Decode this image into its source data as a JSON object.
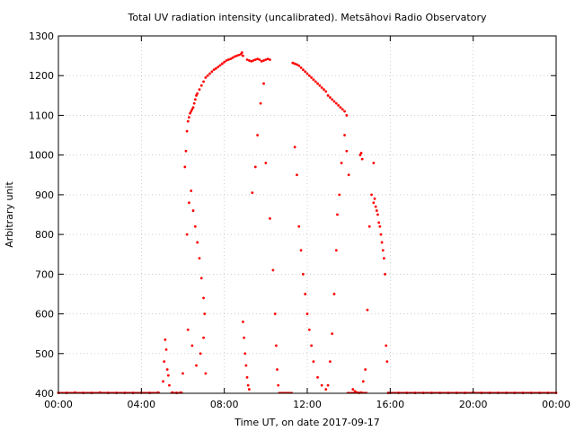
{
  "chart_data": {
    "type": "scatter",
    "title": "Total UV radiation intensity (uncalibrated). Metsähovi Radio Observatory",
    "xlabel": "Time UT, on date 2017-09-17",
    "ylabel": "Arbitrary unit",
    "xlim": [
      0,
      24
    ],
    "ylim": [
      400,
      1300
    ],
    "xticks": [
      {
        "value": 0,
        "label": "00:00"
      },
      {
        "value": 4,
        "label": "04:00"
      },
      {
        "value": 8,
        "label": "08:00"
      },
      {
        "value": 12,
        "label": "12:00"
      },
      {
        "value": 16,
        "label": "16:00"
      },
      {
        "value": 20,
        "label": "20:00"
      },
      {
        "value": 24,
        "label": "00:00"
      }
    ],
    "yticks": [
      {
        "value": 400,
        "label": "400"
      },
      {
        "value": 500,
        "label": "500"
      },
      {
        "value": 600,
        "label": "600"
      },
      {
        "value": 700,
        "label": "700"
      },
      {
        "value": 800,
        "label": "800"
      },
      {
        "value": 900,
        "label": "900"
      },
      {
        "value": 1000,
        "label": "1000"
      },
      {
        "value": 1100,
        "label": "1100"
      },
      {
        "value": 1200,
        "label": "1200"
      },
      {
        "value": 1300,
        "label": "1300"
      }
    ],
    "grid": true,
    "legend": "none",
    "point_color": "#ff0000",
    "series": [
      {
        "x": [
          0.0,
          0.4,
          0.8,
          1.2,
          1.6,
          2.0,
          2.4,
          2.8,
          3.2,
          3.6,
          4.0,
          4.4,
          4.8,
          5.05,
          5.1,
          5.15,
          5.2,
          5.25,
          5.3,
          5.35,
          5.5,
          5.7,
          5.9,
          6.0,
          6.1,
          6.15,
          6.2,
          6.25,
          6.3,
          6.35,
          6.4,
          6.45,
          6.5,
          6.55,
          6.6,
          6.65,
          6.7,
          6.8,
          6.9,
          7.0,
          7.1,
          7.2,
          7.3,
          7.4,
          7.5,
          7.6,
          7.7,
          7.8,
          7.9,
          8.0,
          8.1,
          8.2,
          8.3,
          8.4,
          8.5,
          8.6,
          8.7,
          8.8,
          8.85,
          8.9,
          9.1,
          9.2,
          9.3,
          9.4,
          9.5,
          9.6,
          9.7,
          9.8,
          9.9,
          10.0,
          10.1,
          10.2,
          11.3,
          11.4,
          11.5,
          11.6,
          11.7,
          11.8,
          11.9,
          12.0,
          12.1,
          12.2,
          12.3,
          12.4,
          12.5,
          12.6,
          12.7,
          12.8,
          12.9,
          13.0,
          13.1,
          13.2,
          13.3,
          13.4,
          13.5,
          13.6,
          13.7,
          13.8,
          13.9,
          6.2,
          6.3,
          6.4,
          6.5,
          6.6,
          6.7,
          6.8,
          6.9,
          7.0,
          7.05,
          6.25,
          6.45,
          6.65,
          6.85,
          7.0,
          7.1,
          8.9,
          8.95,
          9.0,
          9.05,
          9.1,
          9.15,
          9.2,
          9.35,
          9.5,
          9.6,
          9.75,
          9.9,
          10.0,
          10.2,
          10.35,
          10.45,
          10.5,
          10.55,
          10.6,
          11.4,
          11.5,
          11.6,
          11.7,
          11.8,
          11.9,
          12.0,
          12.1,
          12.2,
          12.3,
          12.5,
          12.7,
          12.9,
          13.0,
          13.1,
          13.2,
          13.3,
          13.4,
          13.45,
          13.55,
          13.65,
          13.8,
          13.9,
          14.0,
          14.2,
          14.3,
          14.4,
          14.5,
          14.6,
          14.7,
          14.8,
          14.9,
          15.0,
          15.1,
          15.2,
          14.55,
          14.6,
          14.65,
          15.2,
          15.25,
          15.3,
          15.35,
          15.4,
          15.45,
          15.5,
          15.55,
          15.6,
          15.65,
          15.7,
          15.75,
          15.8,
          15.85,
          15.9,
          16.0,
          16.4,
          16.8,
          17.2,
          17.6,
          18.0,
          18.4,
          18.8,
          19.2,
          19.6,
          20.0,
          20.4,
          20.8,
          21.2,
          21.6,
          22.0,
          22.4,
          22.8,
          23.2,
          23.6,
          24.0
        ],
        "y": [
          401,
          401,
          402,
          401,
          401,
          402,
          401,
          401,
          401,
          401,
          401,
          401,
          402,
          430,
          480,
          535,
          510,
          460,
          445,
          420,
          402,
          401,
          402,
          450,
          970,
          1010,
          1060,
          1085,
          1095,
          1105,
          1110,
          1115,
          1120,
          1130,
          1140,
          1150,
          1155,
          1165,
          1175,
          1185,
          1195,
          1200,
          1205,
          1210,
          1215,
          1218,
          1222,
          1226,
          1230,
          1234,
          1238,
          1240,
          1242,
          1245,
          1248,
          1250,
          1252,
          1254,
          1258,
          1250,
          1240,
          1238,
          1236,
          1238,
          1240,
          1242,
          1240,
          1236,
          1238,
          1240,
          1242,
          1240,
          1232,
          1230,
          1228,
          1225,
          1220,
          1215,
          1210,
          1205,
          1200,
          1195,
          1190,
          1185,
          1180,
          1175,
          1170,
          1165,
          1160,
          1150,
          1145,
          1140,
          1135,
          1130,
          1125,
          1120,
          1115,
          1110,
          1100,
          800,
          880,
          910,
          860,
          820,
          780,
          740,
          690,
          640,
          600,
          560,
          520,
          470,
          500,
          540,
          450,
          580,
          540,
          500,
          470,
          440,
          420,
          410,
          905,
          970,
          1050,
          1130,
          1180,
          980,
          840,
          710,
          600,
          520,
          460,
          420,
          1020,
          950,
          820,
          760,
          700,
          650,
          600,
          560,
          520,
          480,
          440,
          420,
          410,
          420,
          480,
          550,
          650,
          760,
          850,
          900,
          980,
          1050,
          1010,
          950,
          410,
          405,
          402,
          401,
          402,
          430,
          460,
          610,
          820,
          900,
          980,
          1000,
          1005,
          990,
          880,
          890,
          870,
          860,
          850,
          830,
          820,
          800,
          780,
          760,
          740,
          700,
          520,
          480,
          401,
          401,
          401,
          401,
          401,
          401,
          401,
          401,
          401,
          401,
          401,
          402,
          401,
          401,
          401,
          401,
          401,
          401,
          401,
          401,
          401,
          401
        ]
      }
    ]
  }
}
